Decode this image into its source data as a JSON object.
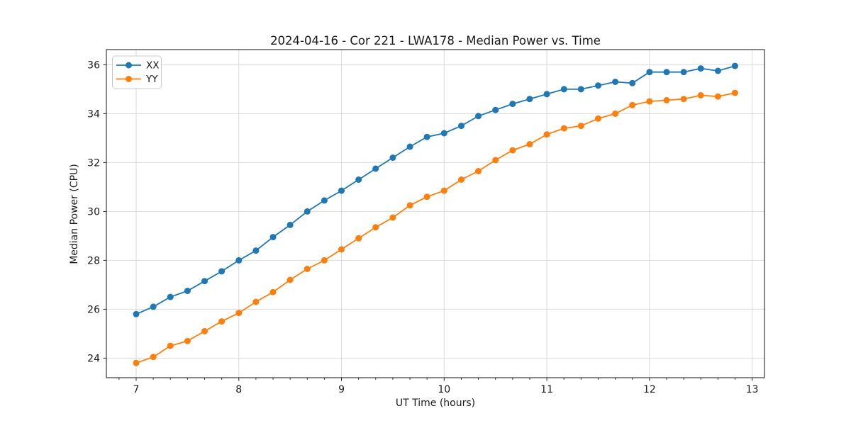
{
  "chart_data": {
    "type": "line",
    "title": "2024-04-16 - Cor 221 - LWA178 - Median Power vs. Time",
    "xlabel": "UT Time (hours)",
    "ylabel": "Median Power (CPU)",
    "xlim": [
      6.71,
      13.12
    ],
    "ylim": [
      23.2,
      36.62
    ],
    "xticks": [
      7,
      8,
      9,
      10,
      11,
      12,
      13
    ],
    "yticks": [
      24,
      26,
      28,
      30,
      32,
      34,
      36
    ],
    "x_minor_tick_step_hours": 0.1667,
    "grid": true,
    "legend_position": "upper-left",
    "marker": "circle",
    "x": [
      7.0,
      7.167,
      7.333,
      7.5,
      7.667,
      7.833,
      8.0,
      8.167,
      8.333,
      8.5,
      8.667,
      8.833,
      9.0,
      9.167,
      9.333,
      9.5,
      9.667,
      9.833,
      10.0,
      10.167,
      10.333,
      10.5,
      10.667,
      10.833,
      11.0,
      11.167,
      11.333,
      11.5,
      11.667,
      11.833,
      12.0,
      12.167,
      12.333,
      12.5,
      12.667,
      12.833
    ],
    "series": [
      {
        "name": "XX",
        "color": "#1f77b4",
        "values": [
          25.8,
          26.1,
          26.5,
          26.75,
          27.15,
          27.55,
          28.0,
          28.4,
          28.95,
          29.45,
          30.0,
          30.45,
          30.85,
          31.3,
          31.75,
          32.2,
          32.65,
          33.05,
          33.2,
          33.5,
          33.9,
          34.15,
          34.4,
          34.6,
          34.8,
          35.0,
          35.0,
          35.15,
          35.3,
          35.25,
          35.7,
          35.7,
          35.7,
          35.85,
          35.75,
          35.95
        ]
      },
      {
        "name": "YY",
        "color": "#ff7f0e",
        "values": [
          23.8,
          24.05,
          24.5,
          24.7,
          25.1,
          25.5,
          25.85,
          26.3,
          26.7,
          27.2,
          27.65,
          28.0,
          28.45,
          28.9,
          29.35,
          29.75,
          30.25,
          30.6,
          30.85,
          31.3,
          31.65,
          32.1,
          32.5,
          32.75,
          33.15,
          33.4,
          33.5,
          33.8,
          34.0,
          34.35,
          34.5,
          34.55,
          34.6,
          34.75,
          34.7,
          34.85
        ]
      }
    ]
  }
}
